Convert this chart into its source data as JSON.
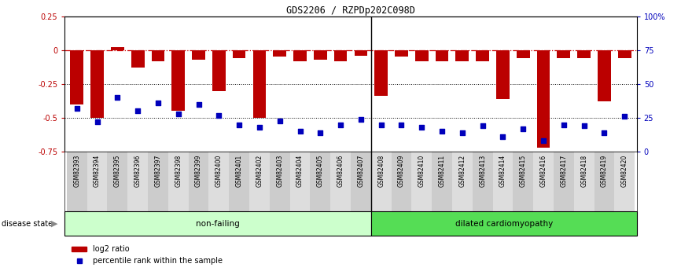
{
  "title": "GDS2206 / RZPDp202C098D",
  "samples": [
    "GSM82393",
    "GSM82394",
    "GSM82395",
    "GSM82396",
    "GSM82397",
    "GSM82398",
    "GSM82399",
    "GSM82400",
    "GSM82401",
    "GSM82402",
    "GSM82403",
    "GSM82404",
    "GSM82405",
    "GSM82406",
    "GSM82407",
    "GSM82408",
    "GSM82409",
    "GSM82410",
    "GSM82411",
    "GSM82412",
    "GSM82413",
    "GSM82414",
    "GSM82415",
    "GSM82416",
    "GSM82417",
    "GSM82418",
    "GSM82419",
    "GSM82420"
  ],
  "log2_ratio": [
    -0.4,
    -0.5,
    0.02,
    -0.13,
    -0.08,
    -0.45,
    -0.07,
    -0.3,
    -0.06,
    -0.5,
    -0.05,
    -0.08,
    -0.07,
    -0.08,
    -0.04,
    -0.34,
    -0.05,
    -0.08,
    -0.08,
    -0.08,
    -0.08,
    -0.36,
    -0.06,
    -0.72,
    -0.06,
    -0.06,
    -0.38,
    -0.06
  ],
  "percentile_rank": [
    32,
    22,
    40,
    30,
    36,
    28,
    35,
    27,
    20,
    18,
    23,
    15,
    14,
    20,
    24,
    20,
    20,
    18,
    15,
    14,
    19,
    11,
    17,
    8,
    20,
    19,
    14,
    26
  ],
  "non_failing_count": 15,
  "ylim_left": [
    -0.75,
    0.25
  ],
  "ylim_right": [
    0,
    100
  ],
  "bar_color": "#bb0000",
  "scatter_color": "#0000bb",
  "hline0_color": "#cc0000",
  "hline_color": "#000000",
  "non_failing_label": "non-failing",
  "dcm_label": "dilated cardiomyopathy",
  "disease_state_label": "disease state",
  "legend_bar_label": "log2 ratio",
  "legend_scatter_label": "percentile rank within the sample",
  "nonfailing_color": "#ccffcc",
  "dcm_color": "#55dd55",
  "tick_bg_even": "#cccccc",
  "tick_bg_odd": "#dddddd"
}
